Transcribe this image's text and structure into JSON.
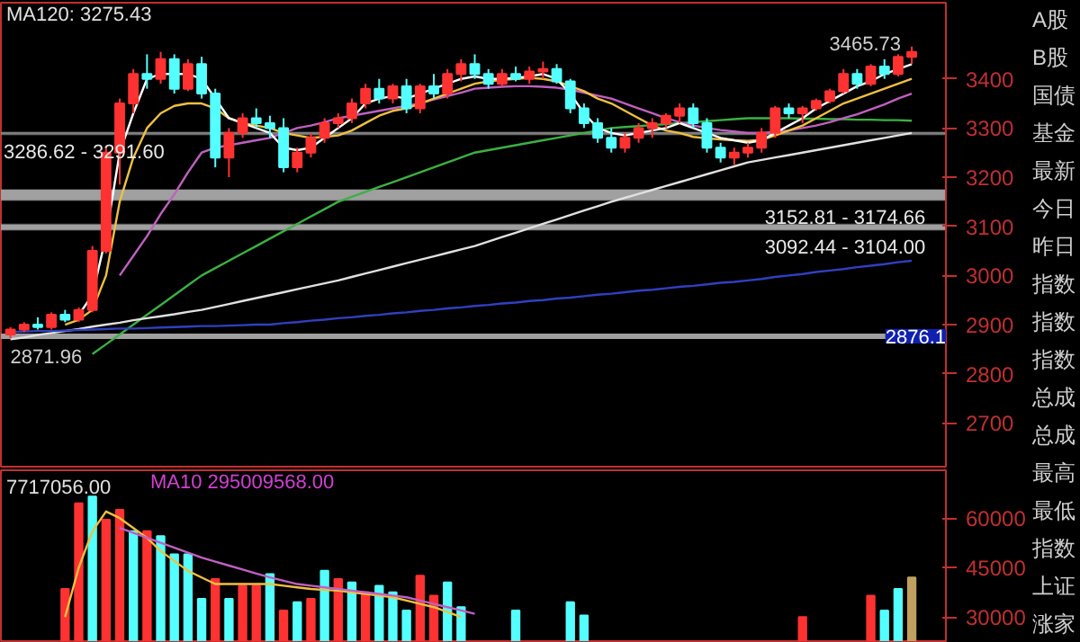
{
  "chart_data": [
    {
      "type": "candlestick",
      "title": "MA120: 3275.43",
      "categories": [
        null,
        null,
        null,
        null,
        null,
        null,
        null,
        null,
        null,
        null,
        null,
        null,
        null,
        null,
        null,
        null,
        null,
        null,
        null,
        null,
        null,
        null,
        null,
        null,
        null,
        null,
        null,
        null,
        null,
        null,
        null,
        null,
        null,
        null,
        null,
        null,
        null,
        null,
        null,
        null,
        null,
        null,
        null,
        null,
        null,
        null,
        null,
        null,
        null,
        null,
        null,
        null,
        null,
        null,
        null,
        null,
        null,
        null,
        null,
        null,
        null,
        null,
        null,
        null,
        null,
        null,
        null
      ],
      "ohlc": [
        [
          2880,
          2895,
          2871.96,
          2890
        ],
        [
          2890,
          2905,
          2885,
          2900
        ],
        [
          2900,
          2915,
          2890,
          2895
        ],
        [
          2895,
          2925,
          2890,
          2920
        ],
        [
          2920,
          2930,
          2905,
          2910
        ],
        [
          2910,
          2935,
          2905,
          2930
        ],
        [
          2930,
          3060,
          2925,
          3050
        ],
        [
          3050,
          3260,
          3045,
          3250
        ],
        [
          3250,
          3360,
          3185,
          3350
        ],
        [
          3350,
          3420,
          3330,
          3410
        ],
        [
          3410,
          3450,
          3380,
          3400
        ],
        [
          3400,
          3455,
          3390,
          3440
        ],
        [
          3440,
          3450,
          3370,
          3380
        ],
        [
          3380,
          3440,
          3375,
          3430
        ],
        [
          3430,
          3445,
          3360,
          3370
        ],
        [
          3370,
          3380,
          3220,
          3240
        ],
        [
          3240,
          3300,
          3200,
          3290
        ],
        [
          3290,
          3330,
          3280,
          3320
        ],
        [
          3320,
          3340,
          3300,
          3310
        ],
        [
          3310,
          3325,
          3280,
          3300
        ],
        [
          3300,
          3320,
          3210,
          3220
        ],
        [
          3220,
          3260,
          3210,
          3250
        ],
        [
          3250,
          3290,
          3240,
          3280
        ],
        [
          3280,
          3320,
          3270,
          3310
        ],
        [
          3310,
          3330,
          3300,
          3320
        ],
        [
          3320,
          3360,
          3310,
          3350
        ],
        [
          3350,
          3390,
          3340,
          3380
        ],
        [
          3380,
          3400,
          3350,
          3360
        ],
        [
          3360,
          3390,
          3350,
          3385
        ],
        [
          3385,
          3400,
          3330,
          3340
        ],
        [
          3340,
          3390,
          3330,
          3385
        ],
        [
          3385,
          3410,
          3360,
          3370
        ],
        [
          3370,
          3420,
          3360,
          3410
        ],
        [
          3410,
          3440,
          3395,
          3430
        ],
        [
          3430,
          3450,
          3400,
          3410
        ],
        [
          3410,
          3420,
          3380,
          3390
        ],
        [
          3390,
          3420,
          3385,
          3410
        ],
        [
          3410,
          3425,
          3395,
          3400
        ],
        [
          3400,
          3425,
          3390,
          3415
        ],
        [
          3415,
          3435,
          3400,
          3420
        ],
        [
          3420,
          3430,
          3390,
          3395
        ],
        [
          3395,
          3400,
          3330,
          3340
        ],
        [
          3340,
          3350,
          3300,
          3310
        ],
        [
          3310,
          3320,
          3270,
          3280
        ],
        [
          3280,
          3300,
          3250,
          3260
        ],
        [
          3260,
          3290,
          3250,
          3280
        ],
        [
          3280,
          3310,
          3270,
          3300
        ],
        [
          3300,
          3320,
          3280,
          3310
        ],
        [
          3310,
          3330,
          3300,
          3325
        ],
        [
          3325,
          3350,
          3310,
          3340
        ],
        [
          3340,
          3350,
          3300,
          3310
        ],
        [
          3310,
          3320,
          3250,
          3260
        ],
        [
          3260,
          3270,
          3230,
          3240
        ],
        [
          3240,
          3260,
          3225,
          3250
        ],
        [
          3250,
          3270,
          3240,
          3260
        ],
        [
          3260,
          3300,
          3250,
          3290
        ],
        [
          3290,
          3345,
          3280,
          3340
        ],
        [
          3340,
          3350,
          3320,
          3330
        ],
        [
          3330,
          3345,
          3310,
          3340
        ],
        [
          3340,
          3360,
          3335,
          3355
        ],
        [
          3355,
          3380,
          3350,
          3375
        ],
        [
          3375,
          3420,
          3370,
          3410
        ],
        [
          3410,
          3420,
          3380,
          3390
        ],
        [
          3390,
          3430,
          3385,
          3425
        ],
        [
          3425,
          3440,
          3400,
          3410
        ],
        [
          3410,
          3450,
          3405,
          3445
        ],
        [
          3445,
          3465.73,
          3430,
          3455
        ]
      ],
      "colors": [
        "#ff3232",
        "#ff3232",
        "#54ffff",
        "#ff3232",
        "#54ffff",
        "#ff3232",
        "#ff3232",
        "#ff3232",
        "#ff3232",
        "#ff3232",
        "#54ffff",
        "#ff3232",
        "#54ffff",
        "#ff3232",
        "#54ffff",
        "#54ffff",
        "#ff3232",
        "#ff3232",
        "#54ffff",
        "#54ffff",
        "#54ffff",
        "#ff3232",
        "#ff3232",
        "#ff3232",
        "#ff3232",
        "#ff3232",
        "#ff3232",
        "#54ffff",
        "#ff3232",
        "#54ffff",
        "#ff3232",
        "#54ffff",
        "#ff3232",
        "#ff3232",
        "#54ffff",
        "#54ffff",
        "#ff3232",
        "#54ffff",
        "#ff3232",
        "#ff3232",
        "#54ffff",
        "#54ffff",
        "#54ffff",
        "#54ffff",
        "#54ffff",
        "#ff3232",
        "#ff3232",
        "#ff3232",
        "#ff3232",
        "#ff3232",
        "#54ffff",
        "#54ffff",
        "#54ffff",
        "#ff3232",
        "#ff3232",
        "#ff3232",
        "#ff3232",
        "#54ffff",
        "#ff3232",
        "#ff3232",
        "#ff3232",
        "#ff3232",
        "#54ffff",
        "#ff3232",
        "#54ffff",
        "#ff3232",
        "#ff3232"
      ],
      "series": [
        {
          "type": "line",
          "color": "#3cb043",
          "values": [
            null,
            null,
            null,
            null,
            null,
            null,
            2840,
            2860,
            2880,
            2900,
            2920,
            2940,
            2960,
            2980,
            3000,
            3015,
            3030,
            3045,
            3060,
            3075,
            3090,
            3105,
            3120,
            3135,
            3150,
            3160,
            3170,
            3180,
            3190,
            3200,
            3210,
            3220,
            3230,
            3240,
            3250,
            3255,
            3260,
            3265,
            3270,
            3275,
            3280,
            3285,
            3290,
            3295,
            3300,
            3302,
            3304,
            3306,
            3308,
            3310,
            3312,
            3314,
            3316,
            3318,
            3320,
            3320,
            3320,
            3320,
            3319,
            3319,
            3318,
            3318,
            3317,
            3317,
            3316,
            3316,
            3315
          ]
        },
        {
          "type": "line",
          "color": "#e0e0e0",
          "values": [
            2870,
            2874,
            2879,
            2883,
            2887,
            2891,
            2896,
            2900,
            2904,
            2909,
            2913,
            2917,
            2921,
            2926,
            2930,
            2936,
            2942,
            2948,
            2954,
            2960,
            2966,
            2972,
            2978,
            2984,
            2990,
            2997,
            3004,
            3011,
            3018,
            3025,
            3032,
            3039,
            3046,
            3053,
            3060,
            3069,
            3078,
            3087,
            3096,
            3105,
            3114,
            3123,
            3132,
            3141,
            3150,
            3158,
            3166,
            3174,
            3182,
            3190,
            3198,
            3206,
            3214,
            3222,
            3230,
            3235,
            3240,
            3245,
            3250,
            3255,
            3260,
            3265,
            3270,
            3275,
            3280,
            3285,
            3290
          ]
        },
        {
          "type": "line",
          "color": "#3040c0",
          "values": [
            2885,
            2886,
            2887,
            2887,
            2888,
            2889,
            2890,
            2891,
            2892,
            2892,
            2893,
            2894,
            2895,
            2896,
            2897,
            2897,
            2898,
            2899,
            2900,
            2900,
            2903,
            2905,
            2908,
            2910,
            2913,
            2915,
            2918,
            2920,
            2923,
            2925,
            2928,
            2930,
            2933,
            2935,
            2938,
            2940,
            2943,
            2945,
            2948,
            2950,
            2953,
            2955,
            2958,
            2961,
            2963,
            2966,
            2969,
            2971,
            2974,
            2977,
            2979,
            2982,
            2985,
            2987,
            2990,
            2993,
            2997,
            3000,
            3003,
            3007,
            3010,
            3013,
            3017,
            3020,
            3023,
            3027,
            3030
          ]
        },
        {
          "type": "line",
          "color": "#c060c0",
          "values": [
            null,
            null,
            null,
            null,
            null,
            null,
            null,
            null,
            3000,
            3040,
            3080,
            3125,
            3165,
            3210,
            3250,
            3260,
            3265,
            3270,
            3275,
            3280,
            3290,
            3300,
            3305,
            3312,
            3320,
            3325,
            3330,
            3335,
            3340,
            3345,
            3350,
            3358,
            3365,
            3372,
            3380,
            3382,
            3384,
            3385,
            3385,
            3384,
            3382,
            3378,
            3372,
            3366,
            3360,
            3350,
            3340,
            3330,
            3320,
            3312,
            3305,
            3300,
            3296,
            3293,
            3290,
            3290,
            3292,
            3295,
            3300,
            3305,
            3312,
            3320,
            3328,
            3338,
            3348,
            3360,
            3370
          ]
        },
        {
          "type": "line",
          "color": "#f0c040",
          "values": [
            null,
            null,
            null,
            null,
            2900,
            2910,
            2930,
            3000,
            3150,
            3240,
            3300,
            3330,
            3345,
            3350,
            3350,
            3340,
            3320,
            3310,
            3305,
            3300,
            3290,
            3285,
            3280,
            3282,
            3285,
            3295,
            3310,
            3325,
            3335,
            3340,
            3350,
            3360,
            3370,
            3380,
            3390,
            3395,
            3398,
            3400,
            3402,
            3400,
            3395,
            3385,
            3375,
            3360,
            3350,
            3335,
            3320,
            3305,
            3295,
            3290,
            3282,
            3279,
            3277,
            3275,
            3274,
            3276,
            3285,
            3295,
            3305,
            3320,
            3335,
            3350,
            3360,
            3370,
            3380,
            3390,
            3400
          ]
        },
        {
          "type": "line",
          "color": "#ffffff",
          "values": [
            null,
            null,
            null,
            null,
            null,
            2920,
            2960,
            3080,
            3250,
            3330,
            3400,
            3410,
            3410,
            3410,
            3400,
            3360,
            3320,
            3310,
            3300,
            3290,
            3260,
            3255,
            3260,
            3280,
            3300,
            3320,
            3350,
            3360,
            3365,
            3360,
            3370,
            3380,
            3390,
            3400,
            3405,
            3400,
            3400,
            3402,
            3405,
            3410,
            3400,
            3370,
            3330,
            3300,
            3290,
            3285,
            3290,
            3295,
            3300,
            3310,
            3300,
            3290,
            3280,
            3275,
            3270,
            3275,
            3290,
            3305,
            3320,
            3340,
            3355,
            3370,
            3385,
            3395,
            3410,
            3420,
            3430
          ]
        }
      ],
      "bands": [
        {
          "axis": "y",
          "from": 3286.62,
          "to": 3291.6,
          "label": "3286.62 - 3291.60",
          "color": "#808080"
        },
        {
          "axis": "y",
          "from": 3152.81,
          "to": 3174.66,
          "label": "3152.81 - 3174.66",
          "color": "#a0a0a0"
        },
        {
          "axis": "y",
          "from": 3092.44,
          "to": 3104,
          "label": "3092.44 - 3104.00",
          "color": "#a0a0a0"
        }
      ],
      "ref_lines": [
        {
          "axis": "y",
          "value": 2876.1,
          "label": "2876.1",
          "color": "#a0a0a0"
        }
      ],
      "annotations": [
        "3465.73",
        "2871.96"
      ],
      "ylim": [
        2611,
        3555
      ],
      "yticks": [
        2700,
        2800,
        2900,
        3000,
        3100,
        3200,
        3300,
        3400
      ],
      "tick_labels": "y"
    },
    {
      "type": "bar",
      "title": "7717056.00",
      "subtitle": "MA10 295009568.00",
      "categories": [
        null,
        null,
        null,
        null,
        null,
        null,
        null,
        null,
        null,
        null,
        null,
        null,
        null,
        null,
        null,
        null,
        null,
        null,
        null,
        null,
        null,
        null,
        null,
        null,
        null,
        null,
        null,
        null,
        null,
        null,
        null,
        null,
        null,
        null,
        null,
        null,
        null,
        null,
        null,
        null,
        null,
        null,
        null,
        null,
        null,
        null,
        null,
        null,
        null,
        null,
        null,
        null,
        null,
        null,
        null,
        null,
        null,
        null,
        null,
        null,
        null,
        null,
        null,
        null,
        null,
        null,
        null
      ],
      "values": [
        null,
        null,
        null,
        null,
        38500,
        64500,
        66500,
        59500,
        62500,
        56000,
        56000,
        54500,
        49000,
        49000,
        35500,
        41500,
        35500,
        39500,
        39500,
        43000,
        32000,
        34500,
        35500,
        44000,
        41500,
        40500,
        37500,
        39500,
        37500,
        32000,
        42500,
        36500,
        40500,
        33000,
        null,
        null,
        null,
        32000,
        null,
        null,
        null,
        34500,
        30500,
        null,
        null,
        null,
        null,
        null,
        null,
        null,
        null,
        null,
        null,
        null,
        null,
        null,
        null,
        null,
        30000,
        null,
        null,
        null,
        null,
        36500,
        32000,
        38500,
        42000
      ],
      "colors": [
        null,
        null,
        null,
        null,
        "#ff3232",
        "#ff3232",
        "#54ffff",
        "#ff3232",
        "#ff3232",
        "#54ffff",
        "#ff3232",
        "#54ffff",
        "#54ffff",
        "#54ffff",
        "#54ffff",
        "#ff3232",
        "#54ffff",
        "#ff3232",
        "#ff3232",
        "#54ffff",
        "#ff3232",
        "#54ffff",
        "#ff3232",
        "#54ffff",
        "#ff3232",
        "#54ffff",
        "#ff3232",
        "#54ffff",
        "#54ffff",
        "#54ffff",
        "#ff3232",
        "#ff3232",
        "#54ffff",
        "#54ffff",
        null,
        null,
        null,
        "#54ffff",
        null,
        null,
        null,
        "#54ffff",
        "#54ffff",
        null,
        null,
        null,
        null,
        null,
        null,
        null,
        null,
        null,
        null,
        null,
        null,
        null,
        null,
        null,
        "#ff3232",
        null,
        null,
        null,
        null,
        "#ff3232",
        "#54ffff",
        "#54ffff",
        "#c0a060"
      ],
      "series": [
        {
          "type": "line",
          "color": "#f0c040",
          "values": [
            null,
            null,
            null,
            null,
            30000,
            45000,
            56000,
            62000,
            60000,
            57000,
            54000,
            50000,
            47000,
            44000,
            42000,
            40000,
            40000,
            40000,
            40000,
            40000,
            39500,
            39000,
            38500,
            38200,
            38000,
            37500,
            37000,
            36500,
            36000,
            35000,
            34000,
            33000,
            31500,
            30000,
            null,
            null,
            null,
            null,
            null,
            null,
            null,
            null,
            null,
            null,
            null,
            null,
            null,
            null,
            null,
            null,
            null,
            null,
            null,
            null,
            null,
            null,
            null,
            null,
            null,
            null,
            null,
            null,
            null,
            null,
            null,
            null,
            null
          ]
        },
        {
          "type": "line",
          "color": "#c060c0",
          "values": [
            null,
            null,
            null,
            null,
            null,
            null,
            null,
            null,
            57000,
            55500,
            54000,
            52500,
            51000,
            49500,
            48000,
            46800,
            45600,
            44400,
            43200,
            42000,
            41000,
            40000,
            39500,
            39000,
            38500,
            38000,
            37500,
            37000,
            36500,
            36000,
            35000,
            34000,
            33000,
            32000,
            31000,
            null,
            null,
            null,
            null,
            null,
            null,
            null,
            null,
            null,
            null,
            null,
            null,
            null,
            null,
            null,
            null,
            null,
            null,
            null,
            null,
            null,
            null,
            null,
            null,
            null,
            null,
            null,
            null,
            null,
            null,
            null,
            null
          ]
        }
      ],
      "ylim": [
        22700,
        74500
      ],
      "yticks": [
        30000,
        45000,
        60000
      ],
      "tick_labels": "y"
    },
    {
      "type": "other",
      "annotations": [
        "A股",
        "B股",
        "国债",
        "基金",
        "最新",
        "今日",
        "昨日",
        "指数",
        "指数",
        "指数",
        "总成",
        "总成",
        "最高",
        "最低",
        "指数",
        "上证",
        "涨家"
      ]
    }
  ]
}
